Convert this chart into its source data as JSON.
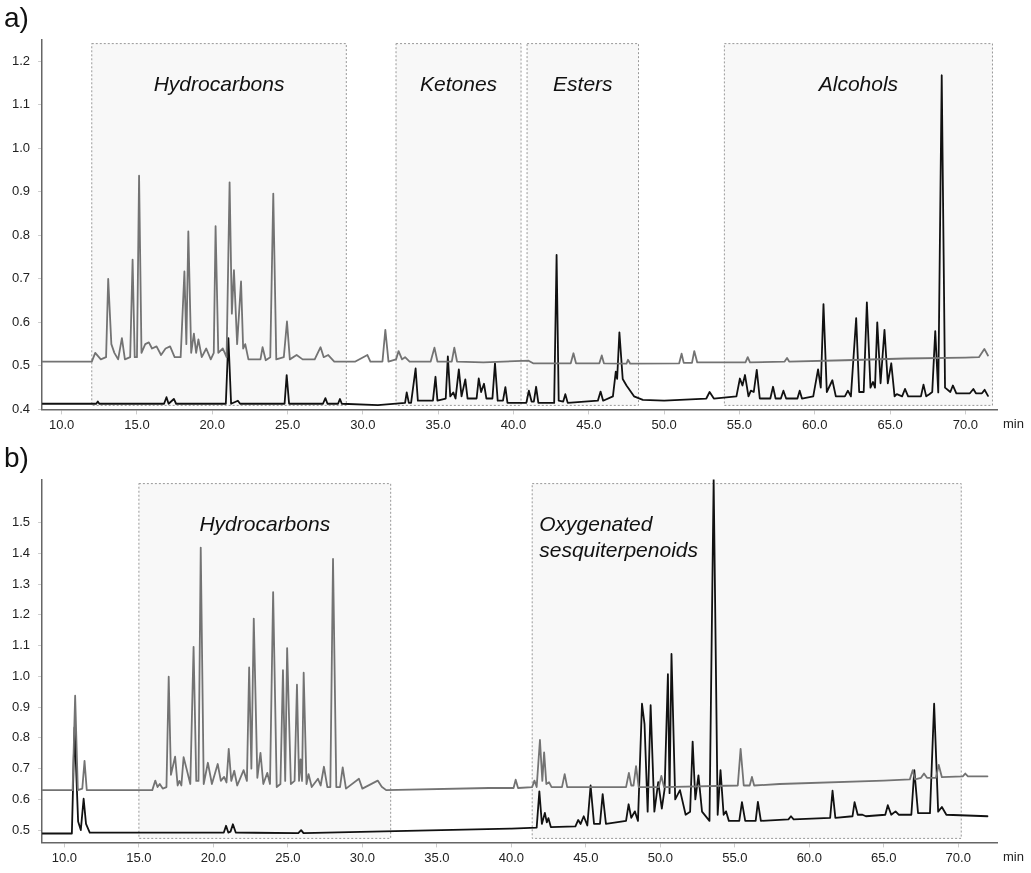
{
  "chart_data": [
    {
      "type": "line",
      "title": "a)",
      "xlabel": "min",
      "xlim": [
        8.7,
        72.1
      ],
      "ylim": [
        0.4,
        1.25
      ],
      "xticks": [
        {
          "value": 10,
          "label": "10.0"
        },
        {
          "value": 15,
          "label": "15.0"
        },
        {
          "value": 20,
          "label": "20.0"
        },
        {
          "value": 25,
          "label": "25.0"
        },
        {
          "value": 30,
          "label": "30.0"
        },
        {
          "value": 35,
          "label": "35.0"
        },
        {
          "value": 40,
          "label": "40.0"
        },
        {
          "value": 45,
          "label": "45.0"
        },
        {
          "value": 50,
          "label": "50.0"
        },
        {
          "value": 55,
          "label": "55.0"
        },
        {
          "value": 60,
          "label": "60.0"
        },
        {
          "value": 65,
          "label": "65.0"
        },
        {
          "value": 70,
          "label": "70.0"
        }
      ],
      "yticks": [
        0.4,
        0.5,
        0.6,
        0.7,
        0.8,
        0.9,
        {
          "value": 1,
          "label": "1.0"
        },
        1.1,
        1.2
      ],
      "grid": false,
      "legend": false,
      "marker": "none",
      "line_style": "solid",
      "bands": [
        {
          "axis": "x",
          "from": 12.0,
          "to": 28.9,
          "label": "Hydrocarbons",
          "color": "#999999"
        },
        {
          "axis": "x",
          "from": 32.2,
          "to": 40.5,
          "label": "Ketones",
          "color": "#999999"
        },
        {
          "axis": "x",
          "from": 40.9,
          "to": 48.3,
          "label": "Esters",
          "color": "#999999"
        },
        {
          "axis": "x",
          "from": 54.0,
          "to": 71.8,
          "label": "Alcohols",
          "color": "#999999"
        }
      ],
      "series": [
        {
          "color": "#737373",
          "x": [
            8.7,
            12.0,
            12.23,
            12.6,
            12.95,
            13.09,
            13.3,
            13.5,
            13.75,
            14.0,
            14.2,
            14.55,
            14.71,
            14.85,
            15.0,
            15.14,
            15.3,
            15.55,
            15.79,
            16.0,
            16.3,
            16.6,
            16.9,
            17.2,
            17.5,
            17.9,
            18.15,
            18.28,
            18.41,
            18.6,
            18.78,
            18.93,
            19.08,
            19.3,
            19.6,
            19.9,
            20.1,
            20.22,
            20.4,
            20.7,
            20.95,
            21.15,
            21.3,
            21.44,
            21.65,
            21.91,
            22.05,
            22.19,
            22.4,
            22.8,
            23.2,
            23.34,
            23.55,
            23.85,
            24.05,
            24.25,
            24.75,
            24.96,
            25.15,
            25.6,
            26.0,
            26.8,
            27.19,
            27.4,
            27.7,
            28.1,
            29.5,
            30.3,
            30.5,
            31.3,
            31.49,
            31.7,
            32.2,
            32.37,
            32.6,
            32.8,
            33.1,
            34.5,
            34.75,
            34.95,
            35.9,
            36.07,
            36.25,
            38.0,
            41.0,
            41.3,
            43.8,
            43.98,
            44.15,
            45.7,
            45.86,
            46.0,
            47.5,
            47.6,
            47.75,
            51.0,
            51.16,
            51.3,
            51.85,
            52.0,
            52.2,
            55.4,
            55.55,
            55.7,
            58.0,
            58.16,
            58.3,
            62.0,
            66.0,
            70.0,
            70.9,
            71.26,
            71.5
          ],
          "values": [
            0.51,
            0.51,
            0.53,
            0.515,
            0.52,
            0.7,
            0.55,
            0.53,
            0.515,
            0.564,
            0.515,
            0.52,
            0.744,
            0.52,
            0.52,
            0.937,
            0.53,
            0.55,
            0.554,
            0.54,
            0.545,
            0.525,
            0.54,
            0.545,
            0.52,
            0.52,
            0.717,
            0.55,
            0.809,
            0.53,
            0.574,
            0.53,
            0.561,
            0.52,
            0.54,
            0.515,
            0.53,
            0.821,
            0.53,
            0.54,
            0.52,
            0.922,
            0.62,
            0.72,
            0.55,
            0.694,
            0.54,
            0.55,
            0.515,
            0.515,
            0.515,
            0.543,
            0.513,
            0.52,
            0.896,
            0.515,
            0.52,
            0.602,
            0.515,
            0.525,
            0.515,
            0.515,
            0.543,
            0.52,
            0.525,
            0.51,
            0.51,
            0.525,
            0.51,
            0.51,
            0.583,
            0.51,
            0.515,
            0.534,
            0.515,
            0.52,
            0.51,
            0.51,
            0.542,
            0.51,
            0.51,
            0.542,
            0.51,
            0.508,
            0.512,
            0.506,
            0.506,
            0.529,
            0.506,
            0.506,
            0.524,
            0.506,
            0.505,
            0.514,
            0.505,
            0.506,
            0.528,
            0.507,
            0.507,
            0.534,
            0.508,
            0.508,
            0.52,
            0.508,
            0.51,
            0.518,
            0.51,
            0.513,
            0.517,
            0.519,
            0.52,
            0.539,
            0.524
          ]
        },
        {
          "color": "#111111",
          "x": [
            8.7,
            12.3,
            12.4,
            12.5,
            16.8,
            16.96,
            17.1,
            17.45,
            17.6,
            20.9,
            21.07,
            21.25,
            21.7,
            21.85,
            24.8,
            24.94,
            25.1,
            27.35,
            27.51,
            27.65,
            28.35,
            28.48,
            28.6,
            31.0,
            32.8,
            32.91,
            33.05,
            33.2,
            33.5,
            33.65,
            34.65,
            34.82,
            34.95,
            35.5,
            35.64,
            35.8,
            36.0,
            36.15,
            36.37,
            36.55,
            36.8,
            36.95,
            37.55,
            37.69,
            37.85,
            38.04,
            38.2,
            38.6,
            38.77,
            38.95,
            39.3,
            39.46,
            39.6,
            40.85,
            41.02,
            41.2,
            41.35,
            41.5,
            41.65,
            42.7,
            42.86,
            43.0,
            43.3,
            43.44,
            43.6,
            45.6,
            45.78,
            45.95,
            46.6,
            46.79,
            46.88,
            47.03,
            47.25,
            47.5,
            48.0,
            48.59,
            50.0,
            52.8,
            53.02,
            53.3,
            54.8,
            55.03,
            55.2,
            55.37,
            55.6,
            55.76,
            55.95,
            56.15,
            56.35,
            57.05,
            57.23,
            57.4,
            57.75,
            57.92,
            58.1,
            58.85,
            59.0,
            59.15,
            59.9,
            60.22,
            60.4,
            60.58,
            60.8,
            61.17,
            61.4,
            62.0,
            62.2,
            62.4,
            62.75,
            62.95,
            63.25,
            63.46,
            63.7,
            63.87,
            64.0,
            64.15,
            64.37,
            64.63,
            64.85,
            65.08,
            65.3,
            65.45,
            65.8,
            65.99,
            66.2,
            67.05,
            67.22,
            67.4,
            67.61,
            67.8,
            68.0,
            68.2,
            68.43,
            68.65,
            69.0,
            69.17,
            69.4,
            70.3,
            70.53,
            70.7,
            71.1,
            71.28,
            71.5
          ],
          "values": [
            0.413,
            0.413,
            0.418,
            0.413,
            0.413,
            0.428,
            0.413,
            0.424,
            0.413,
            0.413,
            0.564,
            0.413,
            0.42,
            0.413,
            0.413,
            0.479,
            0.413,
            0.413,
            0.426,
            0.413,
            0.413,
            0.424,
            0.413,
            0.41,
            0.415,
            0.439,
            0.415,
            0.415,
            0.494,
            0.42,
            0.42,
            0.475,
            0.42,
            0.425,
            0.522,
            0.43,
            0.439,
            0.425,
            0.492,
            0.43,
            0.469,
            0.425,
            0.425,
            0.471,
            0.44,
            0.459,
            0.425,
            0.425,
            0.506,
            0.42,
            0.42,
            0.451,
            0.415,
            0.415,
            0.443,
            0.418,
            0.418,
            0.452,
            0.415,
            0.415,
            0.755,
            0.42,
            0.418,
            0.435,
            0.415,
            0.42,
            0.441,
            0.42,
            0.43,
            0.487,
            0.47,
            0.577,
            0.47,
            0.455,
            0.43,
            0.422,
            0.42,
            0.425,
            0.44,
            0.425,
            0.43,
            0.471,
            0.455,
            0.479,
            0.43,
            0.443,
            0.44,
            0.491,
            0.425,
            0.425,
            0.452,
            0.425,
            0.425,
            0.443,
            0.425,
            0.425,
            0.443,
            0.425,
            0.43,
            0.492,
            0.45,
            0.642,
            0.44,
            0.467,
            0.43,
            0.43,
            0.443,
            0.43,
            0.61,
            0.44,
            0.44,
            0.646,
            0.45,
            0.463,
            0.45,
            0.6,
            0.46,
            0.583,
            0.46,
            0.506,
            0.43,
            0.435,
            0.43,
            0.447,
            0.43,
            0.43,
            0.457,
            0.43,
            0.435,
            0.44,
            0.58,
            0.439,
            1.168,
            0.45,
            0.44,
            0.455,
            0.437,
            0.437,
            0.447,
            0.437,
            0.437,
            0.445,
            0.431
          ]
        }
      ]
    },
    {
      "type": "line",
      "title": "b)",
      "xlabel": "min",
      "xlim": [
        8.5,
        72.6
      ],
      "ylim": [
        0.46,
        1.64
      ],
      "xticks": [
        {
          "value": 10,
          "label": "10.0"
        },
        {
          "value": 15,
          "label": "15.0"
        },
        {
          "value": 20,
          "label": "20.0"
        },
        {
          "value": 25,
          "label": "25.0"
        },
        {
          "value": 30,
          "label": "30.0"
        },
        {
          "value": 35,
          "label": "35.0"
        },
        {
          "value": 40,
          "label": "40.0"
        },
        {
          "value": 45,
          "label": "45.0"
        },
        {
          "value": 50,
          "label": "50.0"
        },
        {
          "value": 55,
          "label": "55.0"
        },
        {
          "value": 60,
          "label": "60.0"
        },
        {
          "value": 65,
          "label": "65.0"
        },
        {
          "value": 70,
          "label": "70.0"
        }
      ],
      "yticks": [
        0.5,
        0.6,
        0.7,
        0.8,
        0.9,
        {
          "value": 1,
          "label": "1.0"
        },
        1.1,
        1.2,
        1.3,
        1.4,
        1.5
      ],
      "grid": false,
      "legend": false,
      "marker": "none",
      "line_style": "solid",
      "bands": [
        {
          "axis": "x",
          "from": 15.0,
          "to": 31.9,
          "label": "Hydrocarbons",
          "color": "#999999"
        },
        {
          "axis": "x",
          "from": 41.4,
          "to": 70.2,
          "label": "Oxygenated sesquiterpenoids",
          "color": "#999999"
        }
      ],
      "series": [
        {
          "color": "#737373",
          "x": [
            8.5,
            10.55,
            10.72,
            10.9,
            11.2,
            11.35,
            11.5,
            15.9,
            16.1,
            16.25,
            16.4,
            16.6,
            16.85,
            17.0,
            17.15,
            17.43,
            17.6,
            17.72,
            17.85,
            18.0,
            18.22,
            18.45,
            18.67,
            18.85,
            19.0,
            19.15,
            19.35,
            19.63,
            19.9,
            20.29,
            20.5,
            20.72,
            20.88,
            21.03,
            21.2,
            21.4,
            21.6,
            22.03,
            22.25,
            22.4,
            22.55,
            22.71,
            22.95,
            23.16,
            23.35,
            23.62,
            23.8,
            24.01,
            24.25,
            24.5,
            24.67,
            24.82,
            24.95,
            25.2,
            25.45,
            25.61,
            25.75,
            25.85,
            25.95,
            26.06,
            26.25,
            26.39,
            26.6,
            27.02,
            27.2,
            27.42,
            27.65,
            27.85,
            28.03,
            28.25,
            28.5,
            28.68,
            28.9,
            29.77,
            30.0,
            31.03,
            31.3,
            31.6,
            38.5,
            40.15,
            40.29,
            40.45,
            41.4,
            41.55,
            41.7,
            41.92,
            42.08,
            42.2,
            42.35,
            42.53,
            42.7,
            43.4,
            43.58,
            43.75,
            47.7,
            47.89,
            48.05,
            48.2,
            48.37,
            48.55,
            49.9,
            50.07,
            50.25,
            55.2,
            55.39,
            55.6,
            56.0,
            56.15,
            56.3,
            58.0,
            65.0,
            66.75,
            66.94,
            67.1,
            67.5,
            67.7,
            67.9,
            68.5,
            68.69,
            68.9,
            70.3,
            70.47,
            70.65,
            71.96
          ],
          "values": [
            0.63,
            0.63,
            0.937,
            0.63,
            0.635,
            0.725,
            0.63,
            0.63,
            0.661,
            0.64,
            0.65,
            0.635,
            0.64,
            0.999,
            0.68,
            0.739,
            0.645,
            0.66,
            0.645,
            0.737,
            0.695,
            0.65,
            1.096,
            0.66,
            0.66,
            1.419,
            0.65,
            0.719,
            0.65,
            0.715,
            0.66,
            0.673,
            0.655,
            0.764,
            0.66,
            0.693,
            0.645,
            0.695,
            0.66,
            1.029,
            0.7,
            1.188,
            0.67,
            0.751,
            0.65,
            0.686,
            0.65,
            1.274,
            0.64,
            0.65,
            1.02,
            0.66,
            1.092,
            0.65,
            0.66,
            0.973,
            0.66,
            0.73,
            0.66,
            1.012,
            0.65,
            0.682,
            0.64,
            0.667,
            0.645,
            0.706,
            0.64,
            0.64,
            1.382,
            0.64,
            0.64,
            0.704,
            0.635,
            0.667,
            0.635,
            0.661,
            0.641,
            0.63,
            0.637,
            0.637,
            0.664,
            0.637,
            0.64,
            0.661,
            0.64,
            0.793,
            0.66,
            0.753,
            0.65,
            0.656,
            0.64,
            0.64,
            0.682,
            0.64,
            0.64,
            0.686,
            0.645,
            0.645,
            0.708,
            0.64,
            0.64,
            0.676,
            0.64,
            0.645,
            0.764,
            0.645,
            0.645,
            0.673,
            0.645,
            0.65,
            0.661,
            0.665,
            0.695,
            0.665,
            0.67,
            0.684,
            0.67,
            0.67,
            0.712,
            0.672,
            0.675,
            0.684,
            0.675,
            0.675
          ]
        },
        {
          "color": "#111111",
          "x": [
            8.5,
            10.5,
            10.68,
            10.92,
            11.1,
            11.29,
            11.45,
            11.7,
            20.7,
            20.85,
            21.0,
            21.15,
            21.31,
            21.5,
            25.7,
            25.89,
            26.05,
            40.0,
            41.7,
            41.88,
            42.05,
            42.25,
            42.38,
            42.49,
            42.65,
            44.3,
            44.49,
            44.65,
            44.86,
            45.1,
            45.32,
            45.55,
            45.95,
            46.13,
            46.35,
            47.7,
            47.87,
            48.05,
            48.29,
            48.5,
            48.77,
            48.94,
            49.15,
            49.35,
            49.6,
            49.86,
            50.1,
            50.29,
            50.51,
            50.62,
            50.75,
            51.0,
            51.32,
            51.7,
            52.0,
            52.17,
            52.35,
            52.56,
            52.8,
            53.3,
            53.58,
            53.85,
            54.04,
            54.25,
            54.41,
            54.6,
            55.3,
            55.48,
            55.7,
            56.4,
            56.55,
            56.75,
            58.6,
            58.77,
            58.95,
            61.4,
            61.56,
            61.75,
            62.9,
            63.04,
            63.25,
            63.57,
            63.8,
            65.1,
            65.27,
            65.5,
            65.79,
            66.0,
            66.85,
            67.05,
            67.3,
            68.1,
            68.38,
            68.65,
            68.9,
            69.2,
            71.96
          ],
          "values": [
            0.489,
            0.489,
            0.834,
            0.528,
            0.5,
            0.602,
            0.52,
            0.492,
            0.492,
            0.514,
            0.492,
            0.495,
            0.519,
            0.492,
            0.49,
            0.5,
            0.49,
            0.505,
            0.508,
            0.626,
            0.52,
            0.556,
            0.525,
            0.539,
            0.51,
            0.512,
            0.533,
            0.52,
            0.545,
            0.515,
            0.645,
            0.52,
            0.52,
            0.617,
            0.52,
            0.53,
            0.584,
            0.54,
            0.561,
            0.53,
            0.911,
            0.845,
            0.56,
            0.906,
            0.56,
            0.656,
            0.57,
            0.634,
            1.007,
            0.62,
            1.073,
            0.6,
            0.63,
            0.55,
            0.56,
            0.788,
            0.6,
            0.678,
            0.56,
            0.53,
            1.64,
            0.55,
            0.695,
            0.55,
            0.561,
            0.53,
            0.53,
            0.591,
            0.53,
            0.53,
            0.592,
            0.53,
            0.535,
            0.545,
            0.535,
            0.54,
            0.628,
            0.54,
            0.545,
            0.591,
            0.55,
            0.55,
            0.545,
            0.55,
            0.581,
            0.55,
            0.561,
            0.55,
            0.55,
            0.695,
            0.555,
            0.555,
            0.911,
            0.56,
            0.575,
            0.55,
            0.545
          ]
        }
      ]
    }
  ]
}
